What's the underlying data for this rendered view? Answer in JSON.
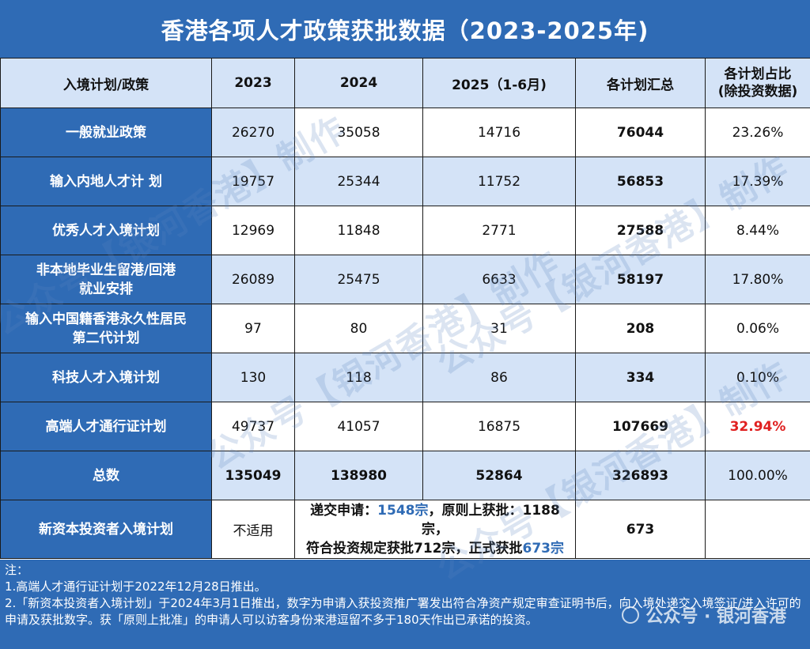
{
  "title": "香港各项人才政策获批数据（2023-2025年)",
  "table": {
    "headers": [
      "入境计划/政策",
      "2023",
      "2024",
      "2025（1-6月)",
      "各计划汇总",
      "各计划占比\n(除投资数据)"
    ],
    "rows": [
      {
        "label": "一般就业政策",
        "y2023": "26270",
        "y2024": "35058",
        "y2025": "14716",
        "total": "76044",
        "share": "23.26%"
      },
      {
        "label": "输入内地人才计 划",
        "y2023": "19757",
        "y2024": "25344",
        "y2025": "11752",
        "total": "56853",
        "share": "17.39%"
      },
      {
        "label": "优秀人才入境计划",
        "y2023": "12969",
        "y2024": "11848",
        "y2025": "2771",
        "total": "27588",
        "share": "8.44%"
      },
      {
        "label": "非本地毕业生留港/回港\n就业安排",
        "y2023": "26089",
        "y2024": "25475",
        "y2025": "6633",
        "total": "58197",
        "share": "17.80%"
      },
      {
        "label": "输入中国籍香港永久性居民\n第二代计划",
        "y2023": "97",
        "y2024": "80",
        "y2025": "31",
        "total": "208",
        "share": "0.06%"
      },
      {
        "label": "科技人才入境计划",
        "y2023": "130",
        "y2024": "118",
        "y2025": "86",
        "total": "334",
        "share": "0.10%"
      },
      {
        "label": "高端人才通行证计划",
        "y2023": "49737",
        "y2024": "41057",
        "y2025": "16875",
        "total": "107669",
        "share": "32.94%"
      }
    ],
    "total_row": {
      "label": "总数",
      "y2023": "135049",
      "y2024": "138980",
      "y2025": "52864",
      "total": "326893",
      "share": "100.00%"
    },
    "investor_row": {
      "label": "新资本投资者入境计划",
      "y2023": "不适用",
      "note_a": "递交申请：",
      "note_b": "1548宗",
      "note_c": "，原则上获批：1188宗，",
      "note_d": "符合投资规定获批712宗，正式获批",
      "note_e": "673宗",
      "total": "673",
      "share": ""
    },
    "colors": {
      "header_blue": "#2f6bb5",
      "light_blue": "#d4e3f7",
      "highlight_red": "#e02020"
    }
  },
  "notes": {
    "heading": "注：",
    "line1": "1.高端人才通行证计划于2022年12月28日推出。",
    "line2": "2.「新资本投资者入境计划」于2024年3月1日推出，数字为申请入获投资推广署发出符合净资产规定审查证明书后，向入境处递交入境签证/进入许可的申请及获批数字。获「原则上批准」的申请人可以访客身份来港逗留不多于180天作出已承诺的投资。"
  },
  "watermark": "公众号【银河香港】制作",
  "brand": "公众号 · 银河香港"
}
